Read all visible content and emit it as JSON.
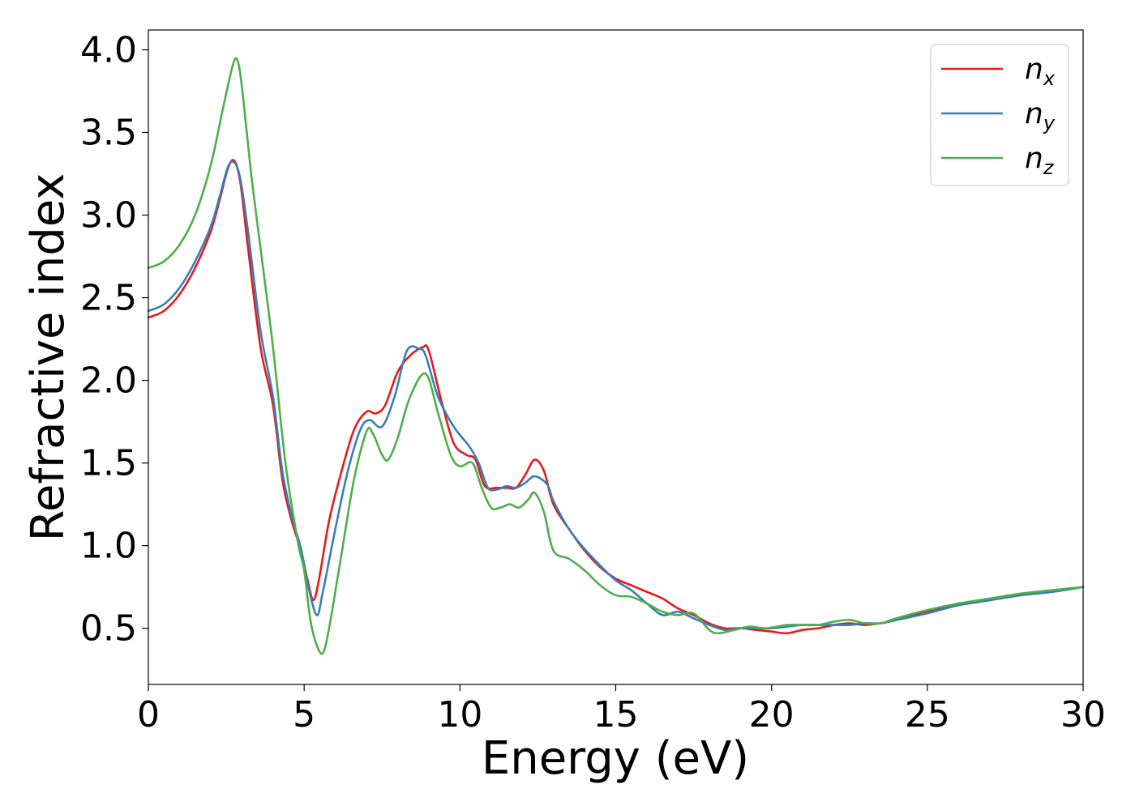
{
  "chart_data": {
    "type": "line",
    "xlabel": "Energy (eV)",
    "ylabel": "Refractive index",
    "xlim": [
      0,
      30
    ],
    "ylim": [
      0.16,
      4.12
    ],
    "xticks": [
      0,
      5,
      10,
      15,
      20,
      25,
      30
    ],
    "xtick_labels": [
      "0",
      "5",
      "10",
      "15",
      "20",
      "25",
      "30"
    ],
    "yticks": [
      0.5,
      1.0,
      1.5,
      2.0,
      2.5,
      3.0,
      3.5,
      4.0
    ],
    "ytick_labels": [
      "0.5",
      "1.0",
      "1.5",
      "2.0",
      "2.5",
      "3.0",
      "3.5",
      "4.0"
    ],
    "grid": false,
    "legend_position": "top-right",
    "series": [
      {
        "name": "n_x",
        "label_base": "n",
        "label_sub": "x",
        "color": "#e41a1c",
        "points": [
          [
            0,
            2.38
          ],
          [
            0.5,
            2.42
          ],
          [
            1.0,
            2.52
          ],
          [
            1.5,
            2.68
          ],
          [
            2.0,
            2.9
          ],
          [
            2.3,
            3.1
          ],
          [
            2.55,
            3.28
          ],
          [
            2.75,
            3.33
          ],
          [
            2.95,
            3.2
          ],
          [
            3.2,
            2.8
          ],
          [
            3.6,
            2.2
          ],
          [
            4.0,
            1.85
          ],
          [
            4.3,
            1.4
          ],
          [
            4.6,
            1.15
          ],
          [
            4.9,
            0.97
          ],
          [
            5.1,
            0.8
          ],
          [
            5.3,
            0.67
          ],
          [
            5.5,
            0.82
          ],
          [
            5.8,
            1.15
          ],
          [
            6.2,
            1.45
          ],
          [
            6.6,
            1.7
          ],
          [
            7.0,
            1.81
          ],
          [
            7.3,
            1.8
          ],
          [
            7.6,
            1.85
          ],
          [
            8.0,
            2.05
          ],
          [
            8.4,
            2.15
          ],
          [
            8.8,
            2.2
          ],
          [
            9.0,
            2.18
          ],
          [
            9.4,
            1.88
          ],
          [
            9.8,
            1.62
          ],
          [
            10.2,
            1.55
          ],
          [
            10.5,
            1.52
          ],
          [
            10.8,
            1.36
          ],
          [
            11.2,
            1.35
          ],
          [
            11.5,
            1.35
          ],
          [
            11.8,
            1.35
          ],
          [
            12.1,
            1.43
          ],
          [
            12.4,
            1.52
          ],
          [
            12.7,
            1.45
          ],
          [
            13.0,
            1.25
          ],
          [
            13.5,
            1.1
          ],
          [
            14.0,
            0.97
          ],
          [
            14.5,
            0.87
          ],
          [
            15.0,
            0.8
          ],
          [
            15.5,
            0.76
          ],
          [
            16.0,
            0.72
          ],
          [
            16.5,
            0.68
          ],
          [
            17.0,
            0.62
          ],
          [
            17.5,
            0.58
          ],
          [
            18.0,
            0.53
          ],
          [
            18.5,
            0.5
          ],
          [
            19.0,
            0.5
          ],
          [
            19.5,
            0.49
          ],
          [
            20.0,
            0.48
          ],
          [
            20.5,
            0.47
          ],
          [
            21.0,
            0.49
          ],
          [
            21.5,
            0.5
          ],
          [
            22.0,
            0.52
          ],
          [
            22.5,
            0.53
          ],
          [
            23.0,
            0.52
          ],
          [
            23.5,
            0.53
          ],
          [
            24.0,
            0.55
          ],
          [
            25.0,
            0.6
          ],
          [
            26.0,
            0.64
          ],
          [
            27.0,
            0.67
          ],
          [
            28.0,
            0.7
          ],
          [
            29.0,
            0.72
          ],
          [
            30.0,
            0.75
          ]
        ]
      },
      {
        "name": "n_y",
        "label_base": "n",
        "label_sub": "y",
        "color": "#377eb8",
        "points": [
          [
            0,
            2.42
          ],
          [
            0.5,
            2.46
          ],
          [
            1.0,
            2.56
          ],
          [
            1.5,
            2.72
          ],
          [
            2.0,
            2.93
          ],
          [
            2.3,
            3.12
          ],
          [
            2.55,
            3.29
          ],
          [
            2.75,
            3.32
          ],
          [
            2.95,
            3.22
          ],
          [
            3.2,
            2.9
          ],
          [
            3.6,
            2.3
          ],
          [
            4.0,
            1.9
          ],
          [
            4.3,
            1.45
          ],
          [
            4.6,
            1.18
          ],
          [
            4.9,
            0.98
          ],
          [
            5.1,
            0.78
          ],
          [
            5.4,
            0.58
          ],
          [
            5.6,
            0.72
          ],
          [
            6.0,
            1.1
          ],
          [
            6.4,
            1.45
          ],
          [
            6.8,
            1.7
          ],
          [
            7.1,
            1.76
          ],
          [
            7.5,
            1.72
          ],
          [
            7.9,
            1.9
          ],
          [
            8.3,
            2.18
          ],
          [
            8.7,
            2.19
          ],
          [
            8.9,
            2.15
          ],
          [
            9.3,
            1.9
          ],
          [
            9.8,
            1.72
          ],
          [
            10.3,
            1.6
          ],
          [
            10.6,
            1.5
          ],
          [
            10.9,
            1.35
          ],
          [
            11.2,
            1.34
          ],
          [
            11.5,
            1.36
          ],
          [
            11.8,
            1.35
          ],
          [
            12.1,
            1.38
          ],
          [
            12.4,
            1.42
          ],
          [
            12.8,
            1.37
          ],
          [
            13.0,
            1.27
          ],
          [
            13.5,
            1.1
          ],
          [
            14.0,
            0.98
          ],
          [
            14.5,
            0.88
          ],
          [
            15.0,
            0.79
          ],
          [
            15.5,
            0.73
          ],
          [
            16.0,
            0.65
          ],
          [
            16.5,
            0.58
          ],
          [
            17.0,
            0.6
          ],
          [
            17.5,
            0.56
          ],
          [
            18.0,
            0.52
          ],
          [
            18.5,
            0.49
          ],
          [
            19.0,
            0.5
          ],
          [
            19.5,
            0.5
          ],
          [
            20.0,
            0.5
          ],
          [
            20.5,
            0.51
          ],
          [
            21.0,
            0.52
          ],
          [
            21.5,
            0.52
          ],
          [
            22.0,
            0.52
          ],
          [
            22.5,
            0.52
          ],
          [
            23.0,
            0.53
          ],
          [
            23.5,
            0.53
          ],
          [
            24.0,
            0.55
          ],
          [
            25.0,
            0.59
          ],
          [
            26.0,
            0.64
          ],
          [
            27.0,
            0.67
          ],
          [
            28.0,
            0.7
          ],
          [
            29.0,
            0.72
          ],
          [
            30.0,
            0.75
          ]
        ]
      },
      {
        "name": "n_z",
        "label_base": "n",
        "label_sub": "z",
        "color": "#4daf4a",
        "points": [
          [
            0,
            2.68
          ],
          [
            0.5,
            2.72
          ],
          [
            1.0,
            2.82
          ],
          [
            1.5,
            3.0
          ],
          [
            2.0,
            3.3
          ],
          [
            2.4,
            3.65
          ],
          [
            2.7,
            3.9
          ],
          [
            2.85,
            3.94
          ],
          [
            3.0,
            3.78
          ],
          [
            3.3,
            3.25
          ],
          [
            3.6,
            2.8
          ],
          [
            4.0,
            2.2
          ],
          [
            4.4,
            1.5
          ],
          [
            4.8,
            1.02
          ],
          [
            5.0,
            0.85
          ],
          [
            5.2,
            0.55
          ],
          [
            5.4,
            0.4
          ],
          [
            5.6,
            0.35
          ],
          [
            5.8,
            0.5
          ],
          [
            6.2,
            0.95
          ],
          [
            6.6,
            1.4
          ],
          [
            7.0,
            1.69
          ],
          [
            7.2,
            1.68
          ],
          [
            7.5,
            1.55
          ],
          [
            7.7,
            1.52
          ],
          [
            8.0,
            1.65
          ],
          [
            8.4,
            1.9
          ],
          [
            8.9,
            2.04
          ],
          [
            9.3,
            1.8
          ],
          [
            9.7,
            1.55
          ],
          [
            10.0,
            1.48
          ],
          [
            10.4,
            1.5
          ],
          [
            10.7,
            1.35
          ],
          [
            11.0,
            1.23
          ],
          [
            11.3,
            1.23
          ],
          [
            11.6,
            1.25
          ],
          [
            11.9,
            1.23
          ],
          [
            12.2,
            1.28
          ],
          [
            12.4,
            1.32
          ],
          [
            12.7,
            1.2
          ],
          [
            13.0,
            0.97
          ],
          [
            13.5,
            0.92
          ],
          [
            14.0,
            0.85
          ],
          [
            14.5,
            0.76
          ],
          [
            15.0,
            0.7
          ],
          [
            15.5,
            0.69
          ],
          [
            16.0,
            0.65
          ],
          [
            16.5,
            0.6
          ],
          [
            17.0,
            0.58
          ],
          [
            17.5,
            0.59
          ],
          [
            18.0,
            0.49
          ],
          [
            18.3,
            0.47
          ],
          [
            18.8,
            0.49
          ],
          [
            19.3,
            0.51
          ],
          [
            19.8,
            0.5
          ],
          [
            20.5,
            0.52
          ],
          [
            21.0,
            0.52
          ],
          [
            21.5,
            0.52
          ],
          [
            22.0,
            0.54
          ],
          [
            22.5,
            0.55
          ],
          [
            23.0,
            0.53
          ],
          [
            23.5,
            0.53
          ],
          [
            24.0,
            0.56
          ],
          [
            25.0,
            0.61
          ],
          [
            26.0,
            0.65
          ],
          [
            27.0,
            0.68
          ],
          [
            28.0,
            0.71
          ],
          [
            29.0,
            0.73
          ],
          [
            30.0,
            0.75
          ]
        ]
      }
    ]
  }
}
